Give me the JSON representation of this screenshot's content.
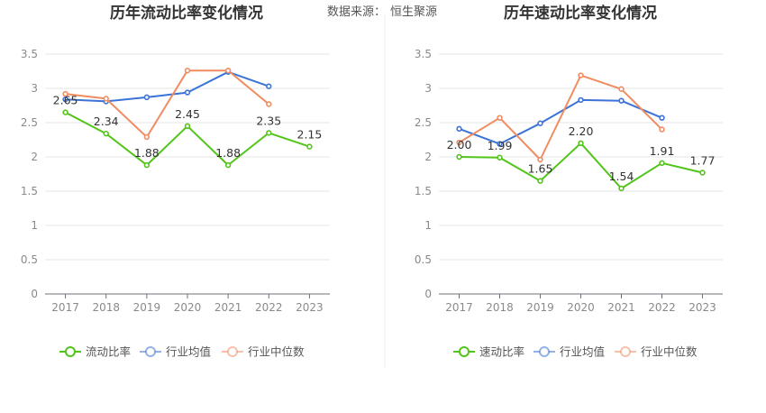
{
  "source_label": "数据来源：",
  "source_name": "恒生聚源",
  "chart_data": [
    {
      "type": "line",
      "title": "历年流动比率变化情况",
      "x": [
        "2017",
        "2018",
        "2019",
        "2020",
        "2021",
        "2022",
        "2023"
      ],
      "ylim": [
        0,
        3.5
      ],
      "yticks": [
        "0",
        "0.5",
        "1",
        "1.5",
        "2",
        "2.5",
        "3",
        "3.5"
      ],
      "grid": true,
      "legend_position": "bottom",
      "series": [
        {
          "name": "流动比率",
          "color": "#52c41a",
          "values": [
            2.65,
            2.34,
            1.88,
            2.45,
            1.88,
            2.35,
            2.15
          ],
          "labels": [
            "2.65",
            "2.34",
            "1.88",
            "2.45",
            "1.88",
            "2.35",
            "2.15"
          ]
        },
        {
          "name": "行业均值",
          "color": "#3b73d6",
          "values": [
            2.84,
            2.81,
            2.87,
            2.94,
            3.24,
            3.03,
            null
          ]
        },
        {
          "name": "行业中位数",
          "color": "#f08c61",
          "values": [
            2.92,
            2.85,
            2.29,
            3.26,
            3.26,
            2.77,
            null
          ]
        }
      ]
    },
    {
      "type": "line",
      "title": "历年速动比率变化情况",
      "x": [
        "2017",
        "2018",
        "2019",
        "2020",
        "2021",
        "2022",
        "2023"
      ],
      "ylim": [
        0,
        3.5
      ],
      "yticks": [
        "0",
        "0.5",
        "1",
        "1.5",
        "2",
        "2.5",
        "3",
        "3.5"
      ],
      "grid": true,
      "legend_position": "bottom",
      "series": [
        {
          "name": "速动比率",
          "color": "#52c41a",
          "values": [
            2.0,
            1.99,
            1.65,
            2.2,
            1.54,
            1.91,
            1.77
          ],
          "labels": [
            "2.00",
            "1.99",
            "1.65",
            "2.20",
            "1.54",
            "1.91",
            "1.77"
          ]
        },
        {
          "name": "行业均值",
          "color": "#3b73d6",
          "values": [
            2.41,
            2.19,
            2.49,
            2.83,
            2.82,
            2.57,
            null
          ]
        },
        {
          "name": "行业中位数",
          "color": "#f08c61",
          "values": [
            2.21,
            2.57,
            1.96,
            3.19,
            2.99,
            2.4,
            null
          ]
        }
      ]
    }
  ]
}
